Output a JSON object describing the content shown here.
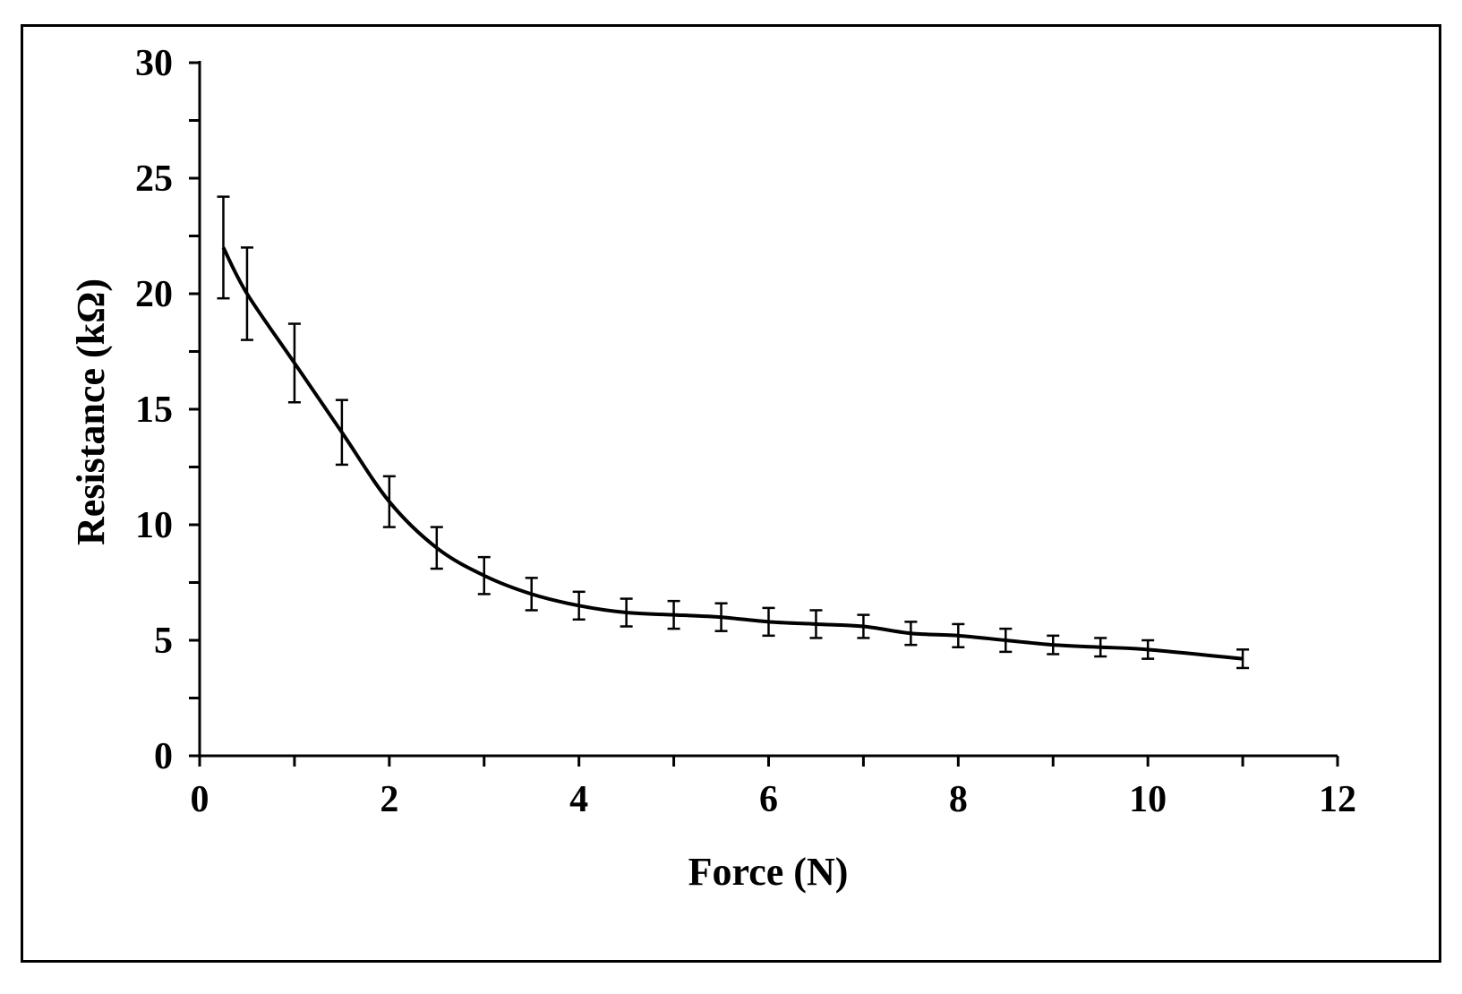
{
  "chart_data": {
    "type": "line",
    "title": "",
    "xlabel": "Force (N)",
    "ylabel": "Resistance (kΩ)",
    "xlim": [
      0,
      12
    ],
    "ylim": [
      0,
      30
    ],
    "x_ticks": [
      0,
      2,
      4,
      6,
      8,
      10,
      12
    ],
    "y_ticks": [
      0,
      5,
      10,
      15,
      20,
      25,
      30
    ],
    "x_tick_labels": [
      "0",
      "2",
      "4",
      "6",
      "8",
      "10",
      "12"
    ],
    "y_tick_labels": [
      "0",
      "5",
      "10",
      "15",
      "20",
      "25",
      "30"
    ],
    "grid": false,
    "legend": "none",
    "line_color": "#000000",
    "series": [
      {
        "x": [
          0.25,
          0.5,
          1,
          1.5,
          2,
          2.5,
          3,
          3.5,
          4,
          4.5,
          5,
          5.5,
          6,
          6.5,
          7,
          7.5,
          8,
          8.5,
          9,
          9.5,
          10,
          11
        ],
        "y": [
          22.0,
          20.0,
          17.0,
          14.0,
          11.0,
          9.0,
          7.8,
          7.0,
          6.5,
          6.2,
          6.1,
          6.0,
          5.8,
          5.7,
          5.6,
          5.3,
          5.2,
          5.0,
          4.8,
          4.7,
          4.6,
          4.2
        ],
        "error": [
          2.2,
          2.0,
          1.7,
          1.4,
          1.1,
          0.9,
          0.8,
          0.7,
          0.6,
          0.6,
          0.6,
          0.6,
          0.6,
          0.6,
          0.5,
          0.5,
          0.5,
          0.5,
          0.4,
          0.4,
          0.4,
          0.4
        ]
      }
    ]
  }
}
